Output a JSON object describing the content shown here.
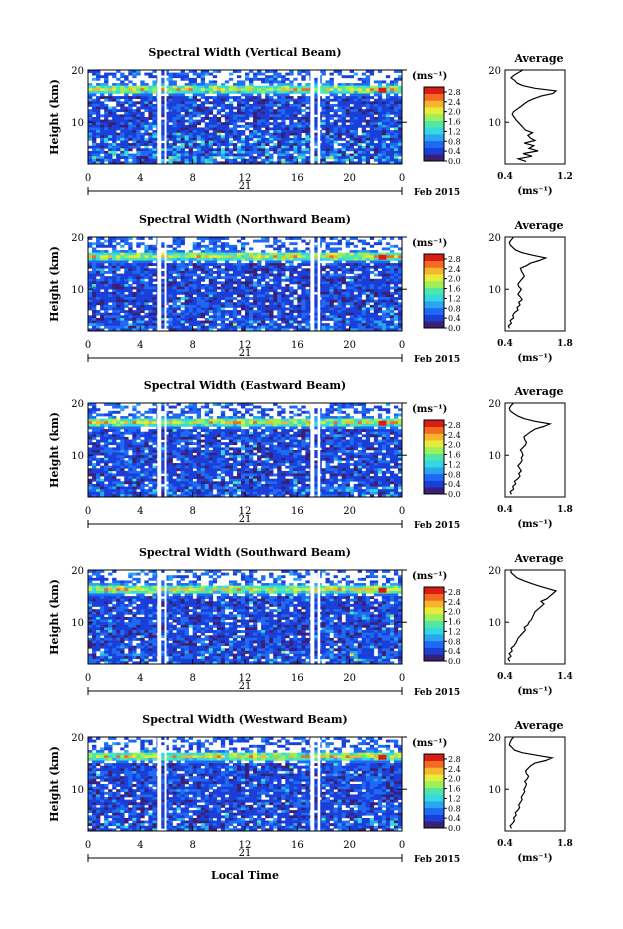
{
  "colors": {
    "colormap": [
      "#3a1f74",
      "#1a3fd8",
      "#1f6af5",
      "#2aa6f0",
      "#35d7e0",
      "#4fe6a8",
      "#9ef05a",
      "#e6ec3a",
      "#f7b52e",
      "#f46a22",
      "#d81e14"
    ],
    "axis": "#000000",
    "gap": "#ffffff"
  },
  "figure": {
    "xlabel": "Local Time",
    "date_label": "Feb 2015",
    "day_label": "21",
    "colorbar_unit": "(ms⁻¹)",
    "avg_title": "Average",
    "avg_xlabel": "(ms⁻¹)",
    "ylabel": "Height (km)"
  },
  "chart_data": [
    {
      "type": "heatmap",
      "title": "Spectral Width (Vertical Beam)",
      "ylabel": "Height (km)",
      "x_ticks": [
        "0",
        "4",
        "8",
        "12",
        "16",
        "20",
        "0"
      ],
      "x_range": [
        0,
        24
      ],
      "y_ticks": [
        "10",
        "20"
      ],
      "y_range": [
        2,
        20
      ],
      "data_gaps_hours": [
        [
          5.3,
          5.6
        ],
        [
          5.85,
          6.0
        ],
        [
          17.0,
          17.3
        ],
        [
          17.55,
          17.75
        ]
      ],
      "colorbar": {
        "label": "(ms⁻¹)",
        "ticks": [
          "0.0",
          "0.4",
          "0.8",
          "1.2",
          "1.6",
          "2.0",
          "2.4",
          "2.8"
        ],
        "range": [
          0,
          3.0
        ]
      },
      "average_profile": {
        "title": "Average",
        "xlabel": "(ms⁻¹)",
        "x_ticks": [
          "0.4",
          "1.2"
        ],
        "x_range": [
          0.4,
          1.4
        ],
        "y_ticks": [
          "10",
          "20"
        ],
        "y_range": [
          2,
          20
        ],
        "height_km": [
          2.5,
          3,
          3.5,
          4,
          4.5,
          5,
          5.5,
          6,
          6.5,
          7,
          7.5,
          8,
          8.5,
          9,
          9.5,
          10,
          10.5,
          11,
          11.5,
          12,
          12.5,
          13,
          13.5,
          14,
          14.5,
          15,
          15.5,
          16,
          16.5,
          17,
          17.5,
          18,
          18.5,
          19,
          19.5,
          20
        ],
        "width_ms": [
          0.75,
          0.62,
          0.85,
          0.7,
          0.95,
          0.8,
          0.88,
          0.72,
          0.9,
          0.82,
          0.78,
          0.86,
          0.74,
          0.7,
          0.66,
          0.62,
          0.58,
          0.55,
          0.52,
          0.54,
          0.6,
          0.66,
          0.72,
          0.78,
          0.88,
          1.0,
          1.2,
          1.25,
          0.9,
          0.7,
          0.6,
          0.56,
          0.5,
          0.55,
          0.62,
          0.7
        ]
      }
    },
    {
      "type": "heatmap",
      "title": "Spectral Width (Northward Beam)",
      "ylabel": "Height (km)",
      "x_ticks": [
        "0",
        "4",
        "8",
        "12",
        "16",
        "20",
        "0"
      ],
      "x_range": [
        0,
        24
      ],
      "y_ticks": [
        "10",
        "20"
      ],
      "y_range": [
        2,
        20
      ],
      "data_gaps_hours": [
        [
          5.3,
          5.6
        ],
        [
          5.85,
          6.0
        ],
        [
          17.0,
          17.3
        ],
        [
          17.55,
          17.75
        ]
      ],
      "colorbar": {
        "label": "(ms⁻¹)",
        "ticks": [
          "0.0",
          "0.4",
          "0.8",
          "1.2",
          "1.6",
          "2.0",
          "2.4",
          "2.8"
        ],
        "range": [
          0,
          3.0
        ]
      },
      "average_profile": {
        "title": "Average",
        "xlabel": "(ms⁻¹)",
        "x_ticks": [
          "0.4",
          "1.8"
        ],
        "x_range": [
          0.4,
          1.8
        ],
        "y_ticks": [
          "10",
          "20"
        ],
        "y_range": [
          2,
          20
        ],
        "height_km": [
          2.5,
          3,
          3.5,
          4,
          4.5,
          5,
          5.5,
          6,
          6.5,
          7,
          7.5,
          8,
          8.5,
          9,
          9.5,
          10,
          10.5,
          11,
          11.5,
          12,
          12.5,
          13,
          13.5,
          14,
          14.5,
          15,
          15.5,
          16,
          16.5,
          17,
          17.5,
          18,
          18.5,
          19,
          19.5,
          20
        ],
        "width_ms": [
          0.5,
          0.48,
          0.55,
          0.52,
          0.6,
          0.58,
          0.62,
          0.7,
          0.68,
          0.75,
          0.72,
          0.8,
          0.76,
          0.7,
          0.74,
          0.78,
          0.72,
          0.7,
          0.75,
          0.8,
          0.85,
          0.82,
          0.78,
          0.76,
          0.9,
          1.0,
          1.2,
          1.35,
          1.05,
          0.8,
          0.65,
          0.58,
          0.52,
          0.5,
          0.55,
          0.6
        ]
      }
    },
    {
      "type": "heatmap",
      "title": "Spectral Width (Eastward Beam)",
      "ylabel": "Height (km)",
      "x_ticks": [
        "0",
        "4",
        "8",
        "12",
        "16",
        "20",
        "0"
      ],
      "x_range": [
        0,
        24
      ],
      "y_ticks": [
        "10",
        "20"
      ],
      "y_range": [
        2,
        20
      ],
      "data_gaps_hours": [
        [
          5.3,
          5.6
        ],
        [
          5.85,
          6.0
        ],
        [
          17.0,
          17.3
        ],
        [
          17.55,
          17.75
        ]
      ],
      "colorbar": {
        "label": "(ms⁻¹)",
        "ticks": [
          "0.0",
          "0.4",
          "0.8",
          "1.2",
          "1.6",
          "2.0",
          "2.4",
          "2.8"
        ],
        "range": [
          0,
          3.0
        ]
      },
      "average_profile": {
        "title": "Average",
        "xlabel": "(ms⁻¹)",
        "x_ticks": [
          "0.4",
          "1.8"
        ],
        "x_range": [
          0.4,
          1.8
        ],
        "y_ticks": [
          "10",
          "20"
        ],
        "y_range": [
          2,
          20
        ],
        "height_km": [
          2.5,
          3,
          3.5,
          4,
          4.5,
          5,
          5.5,
          6,
          6.5,
          7,
          7.5,
          8,
          8.5,
          9,
          9.5,
          10,
          10.5,
          11,
          11.5,
          12,
          12.5,
          13,
          13.5,
          14,
          14.5,
          15,
          15.5,
          16,
          16.5,
          17,
          17.5,
          18,
          18.5,
          19,
          19.5,
          20
        ],
        "width_ms": [
          0.55,
          0.52,
          0.6,
          0.58,
          0.65,
          0.62,
          0.7,
          0.75,
          0.72,
          0.78,
          0.74,
          0.7,
          0.76,
          0.8,
          0.78,
          0.82,
          0.8,
          0.76,
          0.82,
          0.88,
          0.9,
          0.86,
          0.84,
          0.92,
          1.0,
          1.1,
          1.3,
          1.45,
          1.1,
          0.85,
          0.7,
          0.6,
          0.52,
          0.5,
          0.54,
          0.6
        ]
      }
    },
    {
      "type": "heatmap",
      "title": "Spectral Width (Southward Beam)",
      "ylabel": "Height (km)",
      "x_ticks": [
        "0",
        "4",
        "8",
        "12",
        "16",
        "20",
        "0"
      ],
      "x_range": [
        0,
        24
      ],
      "y_ticks": [
        "10",
        "20"
      ],
      "y_range": [
        2,
        20
      ],
      "data_gaps_hours": [
        [
          5.3,
          5.6
        ],
        [
          5.85,
          6.0
        ],
        [
          17.0,
          17.3
        ],
        [
          17.55,
          17.75
        ]
      ],
      "colorbar": {
        "label": "(ms⁻¹)",
        "ticks": [
          "0.0",
          "0.4",
          "0.8",
          "1.2",
          "1.6",
          "2.0",
          "2.4",
          "2.8"
        ],
        "range": [
          0,
          3.0
        ]
      },
      "average_profile": {
        "title": "Average",
        "xlabel": "(ms⁻¹)",
        "x_ticks": [
          "0.4",
          "1.4"
        ],
        "x_range": [
          0.4,
          1.4
        ],
        "y_ticks": [
          "10",
          "20"
        ],
        "y_range": [
          2,
          20
        ],
        "height_km": [
          2.5,
          3,
          3.5,
          4,
          4.5,
          5,
          5.5,
          6,
          6.5,
          7,
          7.5,
          8,
          8.5,
          9,
          9.5,
          10,
          10.5,
          11,
          11.5,
          12,
          12.5,
          13,
          13.5,
          14,
          14.5,
          15,
          15.5,
          16,
          16.5,
          17,
          17.5,
          18,
          18.5,
          19,
          19.5,
          20
        ],
        "width_ms": [
          0.48,
          0.45,
          0.5,
          0.47,
          0.52,
          0.5,
          0.55,
          0.58,
          0.6,
          0.62,
          0.66,
          0.7,
          0.74,
          0.72,
          0.78,
          0.8,
          0.84,
          0.86,
          0.88,
          0.9,
          0.95,
          1.0,
          1.05,
          1.0,
          1.1,
          1.15,
          1.2,
          1.25,
          1.1,
          0.95,
          0.82,
          0.7,
          0.6,
          0.55,
          0.5,
          0.5
        ]
      }
    },
    {
      "type": "heatmap",
      "title": "Spectral Width (Westward Beam)",
      "ylabel": "Height (km)",
      "x_ticks": [
        "0",
        "4",
        "8",
        "12",
        "16",
        "20",
        "0"
      ],
      "x_range": [
        0,
        24
      ],
      "y_ticks": [
        "10",
        "20"
      ],
      "y_range": [
        2,
        20
      ],
      "data_gaps_hours": [
        [
          5.3,
          5.6
        ],
        [
          5.85,
          6.0
        ],
        [
          17.0,
          17.3
        ],
        [
          17.55,
          17.75
        ]
      ],
      "colorbar": {
        "label": "(ms⁻¹)",
        "ticks": [
          "0.0",
          "0.4",
          "0.8",
          "1.2",
          "1.6",
          "2.0",
          "2.4",
          "2.8"
        ],
        "range": [
          0,
          3.0
        ]
      },
      "average_profile": {
        "title": "Average",
        "xlabel": "(ms⁻¹)",
        "x_ticks": [
          "0.4",
          "1.8"
        ],
        "x_range": [
          0.4,
          1.8
        ],
        "y_ticks": [
          "10",
          "20"
        ],
        "y_range": [
          2,
          20
        ],
        "height_km": [
          2.5,
          3,
          3.5,
          4,
          4.5,
          5,
          5.5,
          6,
          6.5,
          7,
          7.5,
          8,
          8.5,
          9,
          9.5,
          10,
          10.5,
          11,
          11.5,
          12,
          12.5,
          13,
          13.5,
          14,
          14.5,
          15,
          15.5,
          16,
          16.5,
          17,
          17.5,
          18,
          18.5,
          19,
          19.5,
          20
        ],
        "width_ms": [
          0.55,
          0.52,
          0.58,
          0.62,
          0.6,
          0.66,
          0.64,
          0.7,
          0.74,
          0.72,
          0.76,
          0.8,
          0.78,
          0.82,
          0.86,
          0.84,
          0.88,
          0.9,
          0.86,
          0.92,
          0.95,
          0.9,
          0.88,
          0.94,
          1.0,
          1.1,
          1.35,
          1.5,
          1.15,
          0.8,
          0.62,
          0.56,
          0.5,
          0.52,
          0.55,
          0.6
        ]
      }
    }
  ]
}
